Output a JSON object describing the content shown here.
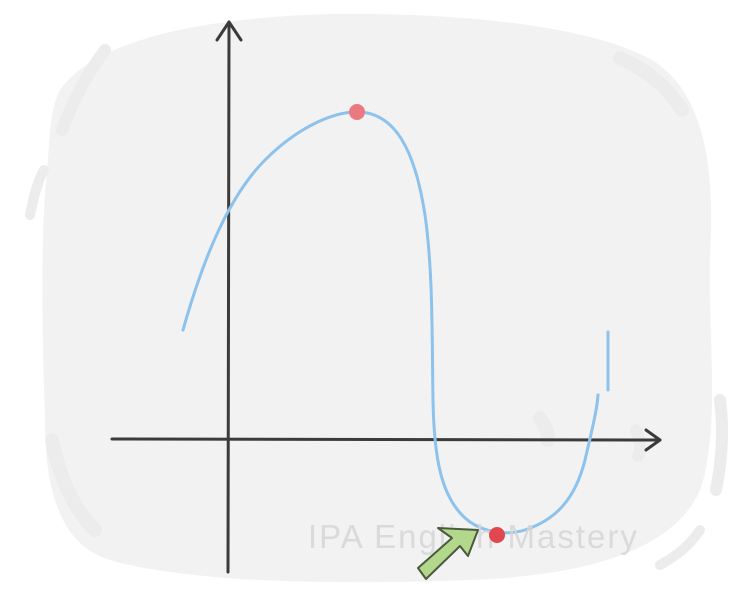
{
  "watermark": "IPA English Mastery",
  "colors": {
    "background_blob": "#f2f2f2",
    "blob_strokes": "#ececec",
    "axis": "#3b3b3b",
    "curve": "#8cc2ec",
    "local_maximum_point": "#ea7a7f",
    "local_minimum_point": "#e2474f",
    "arrow_fill": "#b2d88c",
    "arrow_stroke": "#4a5a3c"
  },
  "icons": {
    "pointer": "arrow-icon"
  }
}
